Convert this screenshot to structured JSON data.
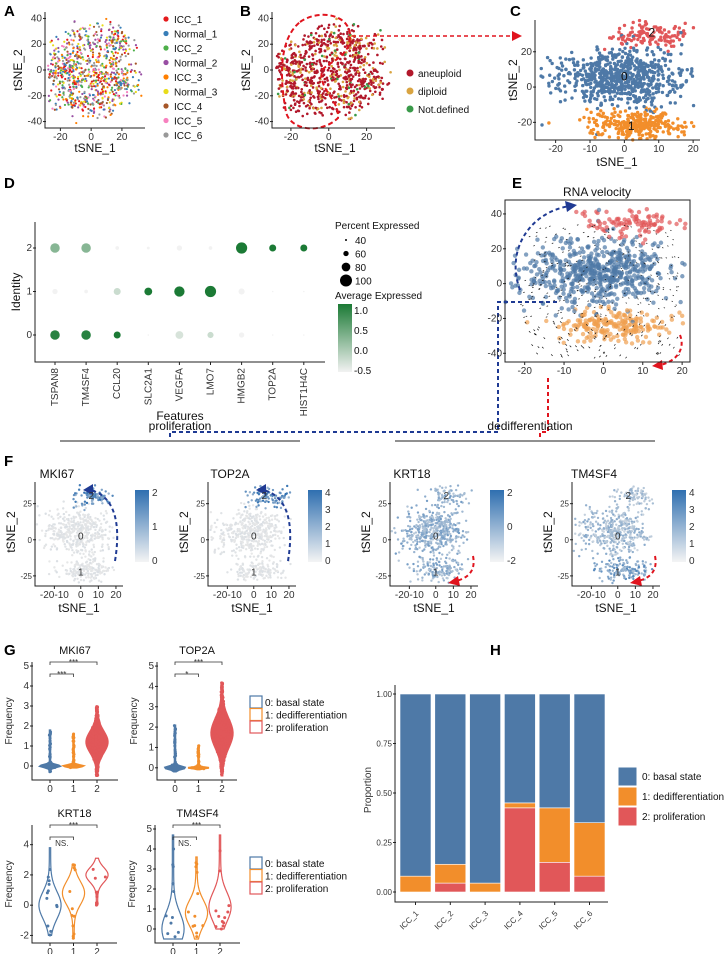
{
  "panels": {
    "A": "A",
    "B": "B",
    "C": "C",
    "D": "D",
    "E": "E",
    "F": "F",
    "G": "G",
    "H": "H"
  },
  "chart_data": [
    {
      "id": "A",
      "type": "scatter",
      "xlabel": "tSNE_1",
      "ylabel": "tSNE_2",
      "xlim": [
        -30,
        35
      ],
      "ylim": [
        -45,
        45
      ],
      "xticks": [
        "-20",
        "0",
        "20"
      ],
      "yticks": [
        "40",
        "20",
        "0",
        "-20",
        "-40"
      ],
      "legend_position": "right",
      "legend": [
        {
          "name": "ICC_1",
          "color": "#e41a1c"
        },
        {
          "name": "Normal_1",
          "color": "#377eb8"
        },
        {
          "name": "ICC_2",
          "color": "#4daf4a"
        },
        {
          "name": "Normal_2",
          "color": "#984ea3"
        },
        {
          "name": "ICC_3",
          "color": "#ff7f00"
        },
        {
          "name": "Normal_3",
          "color": "#e8dc1a"
        },
        {
          "name": "ICC_4",
          "color": "#a65628"
        },
        {
          "name": "ICC_5",
          "color": "#f781bf"
        },
        {
          "name": "ICC_6",
          "color": "#999999"
        }
      ]
    },
    {
      "id": "B",
      "type": "scatter",
      "xlabel": "tSNE_1",
      "ylabel": "tSNE_2",
      "xlim": [
        -30,
        35
      ],
      "ylim": [
        -45,
        45
      ],
      "xticks": [
        "-20",
        "0",
        "20"
      ],
      "yticks": [
        "40",
        "20",
        "0",
        "-20",
        "-40"
      ],
      "legend_position": "right",
      "legend": [
        {
          "name": "aneuploid",
          "color": "#b2182b"
        },
        {
          "name": "diploid",
          "color": "#d9a441"
        },
        {
          "name": "Not.defined",
          "color": "#3a9a4a"
        }
      ],
      "annotation_color": "#e0141e"
    },
    {
      "id": "C",
      "type": "scatter",
      "xlabel": "tSNE_1",
      "ylabel": "tSNE_2",
      "xlim": [
        -26,
        22
      ],
      "ylim": [
        -30,
        38
      ],
      "xticks": [
        "-20",
        "-10",
        "0",
        "10",
        "20"
      ],
      "yticks": [
        "20",
        "0",
        "-20"
      ],
      "clusters": [
        {
          "label": "0",
          "color": "#4e79a7"
        },
        {
          "label": "1",
          "color": "#f28e2b"
        },
        {
          "label": "2",
          "color": "#e15759"
        }
      ]
    },
    {
      "id": "D",
      "type": "dotplot",
      "xlabel": "Features",
      "ylabel": "Identity",
      "features": [
        "TSPAN8",
        "TM4SF4",
        "CCL20",
        "SLC2A1",
        "VEGFA",
        "LMO7",
        "HMGB2",
        "TOP2A",
        "HIST1H4C"
      ],
      "identities": [
        "0",
        "1",
        "2"
      ],
      "average_expressed": [
        [
          1.0,
          1.0,
          1.1,
          -0.5,
          -0.3,
          -0.2,
          -0.5,
          -0.5,
          -0.5
        ],
        [
          -0.5,
          -0.5,
          -0.2,
          1.1,
          1.1,
          1.1,
          -0.5,
          -0.5,
          -0.5
        ],
        [
          0.3,
          0.3,
          -0.5,
          -0.5,
          -0.5,
          -0.5,
          1.1,
          1.1,
          1.1
        ]
      ],
      "percent_expressed": [
        [
          85,
          85,
          70,
          35,
          75,
          65,
          60,
          25,
          30
        ],
        [
          60,
          50,
          70,
          75,
          90,
          95,
          65,
          30,
          35
        ],
        [
          85,
          85,
          50,
          45,
          60,
          50,
          95,
          70,
          70
        ]
      ],
      "size_legend_title": "Percent Expressed",
      "size_legend": [
        "40",
        "60",
        "80",
        "100"
      ],
      "color_legend_title": "Average Expressed",
      "color_ticks": [
        "1.0",
        "0.5",
        "0.0",
        "-0.5"
      ],
      "color_range": [
        -0.5,
        1.1
      ],
      "color_low": "#f2f2f2",
      "color_high": "#1b7a35",
      "yticks": [
        "2",
        "1",
        "0"
      ]
    },
    {
      "id": "E",
      "type": "scatter",
      "title": "RNA velocity",
      "xlim": [
        -25,
        22
      ],
      "ylim": [
        -45,
        48
      ],
      "xticks": [
        "-20",
        "-10",
        "0",
        "10",
        "20"
      ],
      "yticks": [
        "40",
        "20",
        "0",
        "-20",
        "-40"
      ],
      "cluster_colors": [
        "#4e79a7",
        "#f0a050",
        "#e15759"
      ]
    },
    {
      "id": "F",
      "type": "feature_scatter",
      "xlabel": "tSNE_1",
      "ylabel": "tSNE_2",
      "group_labels": {
        "proliferation": "proliferation",
        "dedifferentiation": "dedifferentiation"
      },
      "xticks": [
        "-20-10",
        "0",
        "10",
        "20"
      ],
      "yticks": [
        "25",
        "0",
        "-25"
      ],
      "plots": [
        {
          "gene": "MKI67",
          "colorbar_ticks": [
            "2",
            "1",
            "0"
          ],
          "cluster_labels": [
            "2",
            "0",
            "1"
          ],
          "arrow_color": "#1f3a93"
        },
        {
          "gene": "TOP2A",
          "colorbar_ticks": [
            "4",
            "3",
            "2",
            "1",
            "0"
          ],
          "cluster_labels": [
            "2",
            "0",
            "1"
          ],
          "arrow_color": "#1f3a93"
        },
        {
          "gene": "KRT18",
          "colorbar_ticks": [
            "2",
            "0",
            "-2"
          ],
          "cluster_labels": [
            "2",
            "0",
            "1"
          ],
          "arrow_color": "#e0141e"
        },
        {
          "gene": "TM4SF4",
          "colorbar_ticks": [
            "4",
            "3",
            "2",
            "1",
            "0"
          ],
          "cluster_labels": [
            "2",
            "0",
            "1"
          ],
          "arrow_color": "#e0141e"
        }
      ],
      "color_low": "#e8e8e8",
      "color_high": "#2f6fb0"
    },
    {
      "id": "G",
      "type": "violin",
      "ylabel": "Frequency",
      "categories": [
        "0",
        "1",
        "2"
      ],
      "legend": [
        {
          "name": "0: basal state",
          "color": "#4e79a7"
        },
        {
          "name": "1: dedifferentiation",
          "color": "#f28e2b"
        },
        {
          "name": "2: proliferation",
          "color": "#e15759"
        }
      ],
      "plots": [
        {
          "gene": "MKI67",
          "ylim": [
            -0.7,
            5.2
          ],
          "yticks": [
            "5",
            "4",
            "3",
            "2",
            "1",
            "0"
          ],
          "filled": true,
          "groups": [
            {
              "min": -0.3,
              "max": 1.8,
              "mode": 0
            },
            {
              "min": -0.1,
              "max": 1.6,
              "mode": 0
            },
            {
              "min": -0.5,
              "max": 3.0,
              "mode": 1.2
            }
          ],
          "comparisons": [
            {
              "pair": [
                "0",
                "1"
              ],
              "label": "***"
            },
            {
              "pair": [
                "0",
                "2"
              ],
              "label": "***"
            }
          ]
        },
        {
          "gene": "TOP2A",
          "ylim": [
            -0.6,
            5.2
          ],
          "yticks": [
            "5",
            "4",
            "3",
            "2",
            "1",
            "0"
          ],
          "filled": true,
          "groups": [
            {
              "min": -0.2,
              "max": 2.1,
              "mode": 0
            },
            {
              "min": -0.1,
              "max": 1.1,
              "mode": 0
            },
            {
              "min": -0.4,
              "max": 4.2,
              "mode": 1.7
            }
          ],
          "comparisons": [
            {
              "pair": [
                "0",
                "1"
              ],
              "label": "*"
            },
            {
              "pair": [
                "0",
                "2"
              ],
              "label": "***"
            }
          ]
        },
        {
          "gene": "KRT18",
          "ylim": [
            -2.5,
            5.3
          ],
          "yticks": [
            "4",
            "2",
            "0",
            "-2"
          ],
          "filled": false,
          "groups": [
            {
              "min": -2,
              "max": 3.8,
              "mode": 0
            },
            {
              "min": -2.2,
              "max": 2.7,
              "mode": 0.8
            },
            {
              "min": 0,
              "max": 3.1,
              "mode": 2
            }
          ],
          "comparisons": [
            {
              "pair": [
                "0",
                "1"
              ],
              "label": "NS."
            },
            {
              "pair": [
                "0",
                "2"
              ],
              "label": "***"
            }
          ]
        },
        {
          "gene": "TM4SF4",
          "ylim": [
            -0.7,
            5.2
          ],
          "yticks": [
            "5",
            "4",
            "3",
            "2",
            "1",
            "0"
          ],
          "filled": false,
          "groups": [
            {
              "min": -0.5,
              "max": 4.7,
              "mode": 0
            },
            {
              "min": -0.5,
              "max": 3.6,
              "mode": 0.8
            },
            {
              "min": 0,
              "max": 4.7,
              "mode": 1.1
            }
          ],
          "comparisons": [
            {
              "pair": [
                "0",
                "1"
              ],
              "label": "NS."
            },
            {
              "pair": [
                "0",
                "2"
              ],
              "label": "***"
            }
          ]
        }
      ]
    },
    {
      "id": "H",
      "type": "bar",
      "stacked": true,
      "ylabel": "Proportion",
      "ylim": [
        0,
        1
      ],
      "yticks": [
        "1.00",
        "0.75",
        "0.50",
        "0.25",
        "0.00"
      ],
      "categories": [
        "ICC_1",
        "ICC_2",
        "ICC_3",
        "ICC_4",
        "ICC_5",
        "ICC_6"
      ],
      "series": [
        {
          "name": "2: proliferation",
          "color": "#e15759",
          "values": [
            0,
            0.045,
            0,
            0.425,
            0.15,
            0.08
          ]
        },
        {
          "name": "1: dedifferentiation",
          "color": "#f28e2b",
          "values": [
            0.08,
            0.095,
            0.045,
            0.025,
            0.275,
            0.27
          ]
        },
        {
          "name": "0: basal state",
          "color": "#4e79a7",
          "values": [
            0.92,
            0.86,
            0.955,
            0.55,
            0.575,
            0.65
          ]
        }
      ],
      "legend_order": [
        2,
        1,
        0
      ],
      "legend_position": "right"
    }
  ]
}
